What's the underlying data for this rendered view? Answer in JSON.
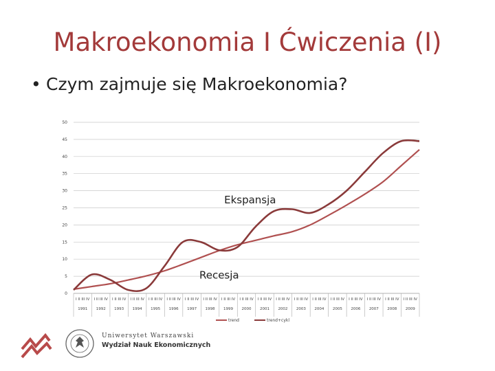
{
  "slide": {
    "title": "Makroekonomia I Ćwiczenia (I)",
    "bullet": "Czym zajmuje się Makroekonomia?"
  },
  "chart_data": {
    "type": "line",
    "yticks": [
      0,
      5,
      10,
      15,
      20,
      25,
      30,
      35,
      40,
      45,
      50
    ],
    "ylim": [
      0,
      50
    ],
    "year_labels": [
      "1991",
      "1992",
      "1993",
      "1994",
      "1995",
      "1996",
      "1997",
      "1998",
      "1999",
      "2000",
      "2001",
      "2002",
      "2003",
      "2004",
      "2005",
      "2006",
      "2007",
      "2008",
      "2009"
    ],
    "quarter_labels": [
      "I",
      "II",
      "III",
      "IV"
    ],
    "x": [
      0,
      1,
      2,
      3,
      4,
      5,
      6,
      7,
      8,
      9,
      10,
      11,
      12,
      13,
      14,
      15,
      16,
      17,
      18,
      19
    ],
    "series": [
      {
        "name": "trend",
        "color": "#b05050",
        "values": [
          1.2,
          2.0,
          2.8,
          3.9,
          5.1,
          6.6,
          8.5,
          10.5,
          12.5,
          14.2,
          15.5,
          16.8,
          18.0,
          20.0,
          22.8,
          25.8,
          29.0,
          32.6,
          37.3,
          42.0
        ]
      },
      {
        "name": "trend+cykl",
        "color": "#8a3a3a",
        "values": [
          1.0,
          5.5,
          4.0,
          1.0,
          1.5,
          8.0,
          15.0,
          15.0,
          12.6,
          13.5,
          19.5,
          24.0,
          24.6,
          23.5,
          26.0,
          30.0,
          35.5,
          41.0,
          44.5,
          44.5
        ]
      }
    ],
    "annotations": [
      {
        "text": "Ekspansja",
        "x": 9.7,
        "y": 26.3
      },
      {
        "text": "Recesja",
        "x": 8.0,
        "y": 4.3
      }
    ],
    "grid": true,
    "legend": "bottom"
  },
  "footer": {
    "university": "Uniwersytet Warszawski",
    "department": "Wydział Nauk Ekonomicznych",
    "seal_text": "UNIVERSITAS VARSOVIENSIS",
    "brand_color": "#b84a4a"
  }
}
